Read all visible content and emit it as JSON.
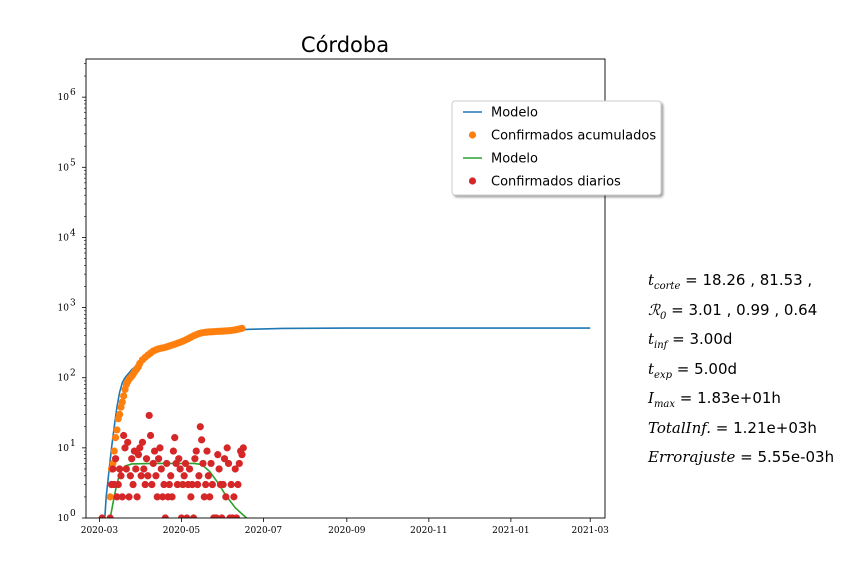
{
  "chart_data": {
    "type": "scatter",
    "title": "Córdoba",
    "xlabel": "",
    "ylabel": "",
    "yscale": "log",
    "ylim": [
      1,
      3500000
    ],
    "xlim": [
      "2020-02-20",
      "2021-03-12"
    ],
    "x_ticks": [
      "2020-03",
      "2020-05",
      "2020-07",
      "2020-09",
      "2020-11",
      "2021-01",
      "2021-03"
    ],
    "y_ticks": [
      {
        "value": 1,
        "base": "10",
        "exp": "0"
      },
      {
        "value": 10,
        "base": "10",
        "exp": "1"
      },
      {
        "value": 100,
        "base": "10",
        "exp": "2"
      },
      {
        "value": 1000,
        "base": "10",
        "exp": "3"
      },
      {
        "value": 10000,
        "base": "10",
        "exp": "4"
      },
      {
        "value": 100000,
        "base": "10",
        "exp": "5"
      },
      {
        "value": 1000000,
        "base": "10",
        "exp": "6"
      }
    ],
    "legend_position": "upper right",
    "series": [
      {
        "name": "Modelo",
        "kind": "line",
        "color": "#1f77b4",
        "points": [
          [
            "2020-03-05",
            1
          ],
          [
            "2020-03-06",
            2
          ],
          [
            "2020-03-08",
            4.5
          ],
          [
            "2020-03-10",
            10
          ],
          [
            "2020-03-12",
            20
          ],
          [
            "2020-03-14",
            38
          ],
          [
            "2020-03-16",
            62
          ],
          [
            "2020-03-18",
            85
          ],
          [
            "2020-03-20",
            100
          ],
          [
            "2020-03-25",
            130
          ],
          [
            "2020-04-01",
            170
          ],
          [
            "2020-04-10",
            230
          ],
          [
            "2020-04-20",
            290
          ],
          [
            "2020-05-01",
            350
          ],
          [
            "2020-05-15",
            410
          ],
          [
            "2020-06-01",
            460
          ],
          [
            "2020-06-20",
            490
          ],
          [
            "2020-07-15",
            505
          ],
          [
            "2020-09-01",
            510
          ],
          [
            "2021-03-01",
            510
          ]
        ]
      },
      {
        "name": "Confirmados acumulados",
        "kind": "scatter",
        "color": "#ff7f0e",
        "points": [
          [
            "2020-03-09",
            2
          ],
          [
            "2020-03-10",
            5
          ],
          [
            "2020-03-11",
            6
          ],
          [
            "2020-03-12",
            9
          ],
          [
            "2020-03-13",
            14
          ],
          [
            "2020-03-14",
            18
          ],
          [
            "2020-03-15",
            26
          ],
          [
            "2020-03-16",
            30
          ],
          [
            "2020-03-17",
            38
          ],
          [
            "2020-03-18",
            45
          ],
          [
            "2020-03-19",
            55
          ],
          [
            "2020-03-20",
            68
          ],
          [
            "2020-03-21",
            80
          ],
          [
            "2020-03-22",
            88
          ],
          [
            "2020-03-23",
            95
          ],
          [
            "2020-03-24",
            100
          ],
          [
            "2020-03-25",
            105
          ],
          [
            "2020-03-26",
            112
          ],
          [
            "2020-03-27",
            120
          ],
          [
            "2020-03-28",
            128
          ],
          [
            "2020-03-29",
            135
          ],
          [
            "2020-03-30",
            145
          ],
          [
            "2020-03-31",
            160
          ],
          [
            "2020-04-02",
            180
          ],
          [
            "2020-04-04",
            195
          ],
          [
            "2020-04-06",
            210
          ],
          [
            "2020-04-08",
            225
          ],
          [
            "2020-04-10",
            240
          ],
          [
            "2020-04-12",
            250
          ],
          [
            "2020-04-14",
            258
          ],
          [
            "2020-04-16",
            263
          ],
          [
            "2020-04-18",
            268
          ],
          [
            "2020-04-20",
            275
          ],
          [
            "2020-04-22",
            283
          ],
          [
            "2020-04-24",
            292
          ],
          [
            "2020-04-26",
            300
          ],
          [
            "2020-04-28",
            310
          ],
          [
            "2020-04-30",
            320
          ],
          [
            "2020-05-02",
            332
          ],
          [
            "2020-05-04",
            345
          ],
          [
            "2020-05-06",
            360
          ],
          [
            "2020-05-08",
            378
          ],
          [
            "2020-05-10",
            395
          ],
          [
            "2020-05-12",
            410
          ],
          [
            "2020-05-14",
            425
          ],
          [
            "2020-05-16",
            435
          ],
          [
            "2020-05-18",
            442
          ],
          [
            "2020-05-20",
            447
          ],
          [
            "2020-05-22",
            450
          ],
          [
            "2020-05-24",
            452
          ],
          [
            "2020-05-26",
            455
          ],
          [
            "2020-05-28",
            458
          ],
          [
            "2020-05-30",
            460
          ],
          [
            "2020-06-01",
            462
          ],
          [
            "2020-06-03",
            465
          ],
          [
            "2020-06-05",
            468
          ],
          [
            "2020-06-07",
            472
          ],
          [
            "2020-06-09",
            477
          ],
          [
            "2020-06-11",
            485
          ],
          [
            "2020-06-13",
            495
          ],
          [
            "2020-06-15",
            505
          ]
        ]
      },
      {
        "name": "Modelo",
        "kind": "line",
        "color": "#2ca02c",
        "points": [
          [
            "2020-03-09",
            1
          ],
          [
            "2020-03-11",
            1.6
          ],
          [
            "2020-03-13",
            2.5
          ],
          [
            "2020-03-15",
            3.6
          ],
          [
            "2020-03-17",
            4.6
          ],
          [
            "2020-03-20",
            5.5
          ],
          [
            "2020-03-25",
            5.9
          ],
          [
            "2020-04-10",
            6
          ],
          [
            "2020-05-10",
            6
          ],
          [
            "2020-05-16",
            5.8
          ],
          [
            "2020-05-22",
            4.6
          ],
          [
            "2020-05-28",
            3.2
          ],
          [
            "2020-06-03",
            2.1
          ],
          [
            "2020-06-10",
            1.4
          ],
          [
            "2020-06-16",
            1.1
          ],
          [
            "2020-06-19",
            0.98
          ]
        ]
      },
      {
        "name": "Confirmados diarios",
        "kind": "scatter",
        "color": "#d62728",
        "points": [
          [
            "2020-03-03",
            1
          ],
          [
            "2020-03-09",
            1
          ],
          [
            "2020-03-10",
            3
          ],
          [
            "2020-03-11",
            5
          ],
          [
            "2020-03-12",
            3
          ],
          [
            "2020-03-13",
            7
          ],
          [
            "2020-03-14",
            2
          ],
          [
            "2020-03-15",
            3
          ],
          [
            "2020-03-16",
            5
          ],
          [
            "2020-03-17",
            4
          ],
          [
            "2020-03-18",
            2
          ],
          [
            "2020-03-19",
            15
          ],
          [
            "2020-03-20",
            10
          ],
          [
            "2020-03-21",
            5
          ],
          [
            "2020-03-22",
            12
          ],
          [
            "2020-03-23",
            2
          ],
          [
            "2020-03-24",
            4
          ],
          [
            "2020-03-25",
            7
          ],
          [
            "2020-03-26",
            3
          ],
          [
            "2020-03-27",
            9
          ],
          [
            "2020-03-28",
            5
          ],
          [
            "2020-03-29",
            2
          ],
          [
            "2020-03-30",
            8
          ],
          [
            "2020-03-31",
            10
          ],
          [
            "2020-04-01",
            4
          ],
          [
            "2020-04-02",
            12
          ],
          [
            "2020-04-03",
            5
          ],
          [
            "2020-04-04",
            3
          ],
          [
            "2020-04-05",
            7
          ],
          [
            "2020-04-06",
            4
          ],
          [
            "2020-04-07",
            29
          ],
          [
            "2020-04-08",
            15
          ],
          [
            "2020-04-09",
            3
          ],
          [
            "2020-04-10",
            6
          ],
          [
            "2020-04-11",
            9
          ],
          [
            "2020-04-12",
            4
          ],
          [
            "2020-04-13",
            2
          ],
          [
            "2020-04-14",
            7
          ],
          [
            "2020-04-15",
            10
          ],
          [
            "2020-04-16",
            5
          ],
          [
            "2020-04-17",
            2
          ],
          [
            "2020-04-18",
            3
          ],
          [
            "2020-04-19",
            1
          ],
          [
            "2020-04-20",
            6
          ],
          [
            "2020-04-21",
            2
          ],
          [
            "2020-04-22",
            3
          ],
          [
            "2020-04-23",
            4
          ],
          [
            "2020-04-24",
            2
          ],
          [
            "2020-04-25",
            9
          ],
          [
            "2020-04-26",
            14
          ],
          [
            "2020-04-27",
            6
          ],
          [
            "2020-04-28",
            3
          ],
          [
            "2020-04-29",
            7
          ],
          [
            "2020-04-30",
            5
          ],
          [
            "2020-05-01",
            1
          ],
          [
            "2020-05-02",
            3
          ],
          [
            "2020-05-03",
            4
          ],
          [
            "2020-05-04",
            6
          ],
          [
            "2020-05-05",
            1
          ],
          [
            "2020-05-06",
            3
          ],
          [
            "2020-05-07",
            5
          ],
          [
            "2020-05-08",
            2
          ],
          [
            "2020-05-09",
            3
          ],
          [
            "2020-05-10",
            1
          ],
          [
            "2020-05-11",
            7
          ],
          [
            "2020-05-12",
            9
          ],
          [
            "2020-05-13",
            3
          ],
          [
            "2020-05-14",
            4
          ],
          [
            "2020-05-15",
            20
          ],
          [
            "2020-05-16",
            13
          ],
          [
            "2020-05-17",
            6
          ],
          [
            "2020-05-18",
            2
          ],
          [
            "2020-05-19",
            3
          ],
          [
            "2020-05-20",
            9
          ],
          [
            "2020-05-21",
            4
          ],
          [
            "2020-05-22",
            2
          ],
          [
            "2020-05-23",
            6
          ],
          [
            "2020-05-24",
            3
          ],
          [
            "2020-05-25",
            1
          ],
          [
            "2020-05-26",
            1
          ],
          [
            "2020-05-27",
            1
          ],
          [
            "2020-05-28",
            8
          ],
          [
            "2020-05-29",
            5
          ],
          [
            "2020-05-30",
            3
          ],
          [
            "2020-05-31",
            1
          ],
          [
            "2020-06-01",
            3
          ],
          [
            "2020-06-02",
            7
          ],
          [
            "2020-06-03",
            2
          ],
          [
            "2020-06-04",
            10
          ],
          [
            "2020-06-05",
            6
          ],
          [
            "2020-06-06",
            1
          ],
          [
            "2020-06-07",
            3
          ],
          [
            "2020-06-08",
            1
          ],
          [
            "2020-06-09",
            2
          ],
          [
            "2020-06-10",
            5
          ],
          [
            "2020-06-11",
            1
          ],
          [
            "2020-06-12",
            3
          ],
          [
            "2020-06-13",
            6
          ],
          [
            "2020-06-14",
            9
          ],
          [
            "2020-06-15",
            8
          ],
          [
            "2020-06-16",
            10
          ]
        ]
      }
    ]
  },
  "stats": [
    {
      "var": "t",
      "sub": "corte",
      "text": " = 18.26 , 81.53 ,"
    },
    {
      "var": "ℛ",
      "sub": "0",
      "text": " = 3.01 , 0.99 , 0.64"
    },
    {
      "var": "t",
      "sub": "inf",
      "text": " = 3.00d"
    },
    {
      "var": "t",
      "sub": "exp",
      "text": " = 5.00d"
    },
    {
      "var": "I",
      "sub": "max",
      "text": " = 1.83e+01h"
    },
    {
      "var": "TotalInf.",
      "sub": "",
      "text": " = 1.21e+03h"
    },
    {
      "var": "Errorajuste",
      "sub": "",
      "text": " = 5.55e-03h"
    }
  ]
}
